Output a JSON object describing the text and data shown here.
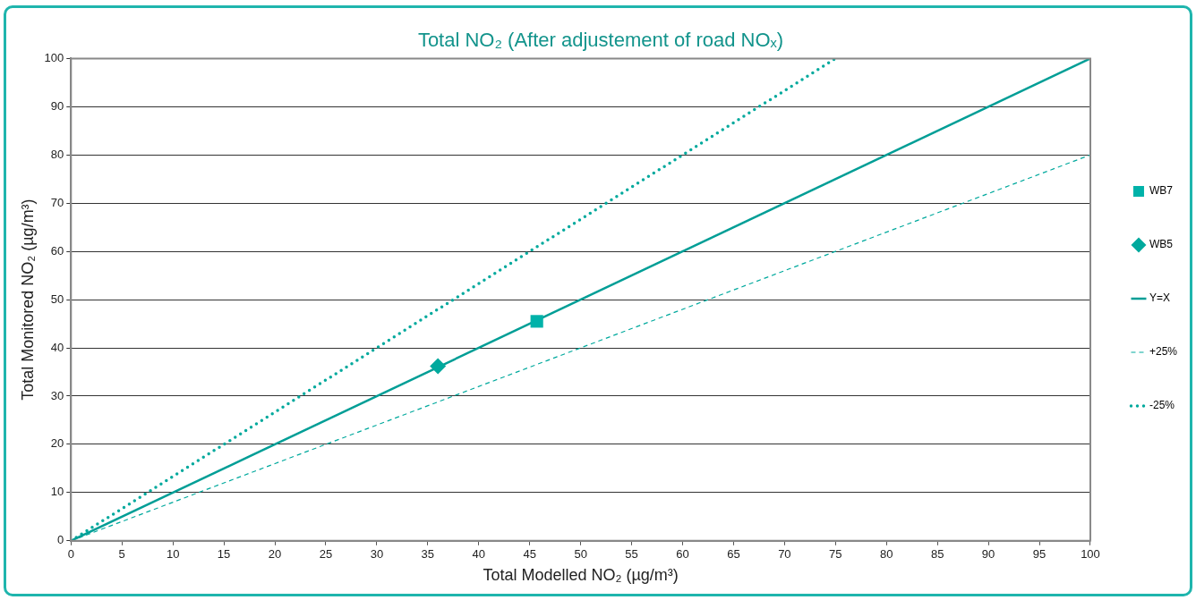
{
  "chart_data": {
    "type": "scatter",
    "title": "Total NO₂ (After adjustement of road NOₓ)",
    "xlabel": "Total Modelled NO₂ (µg/m³)",
    "ylabel": "Total Monitored NO₂ (µg/m³)",
    "xlim": [
      0,
      100
    ],
    "ylim": [
      0,
      100
    ],
    "xticks": [
      0,
      5,
      10,
      15,
      20,
      25,
      30,
      35,
      40,
      45,
      50,
      55,
      60,
      65,
      70,
      75,
      80,
      85,
      90,
      95,
      100
    ],
    "yticks": [
      0,
      10,
      20,
      30,
      40,
      50,
      60,
      70,
      80,
      90,
      100
    ],
    "grid": "y",
    "legend": "right",
    "series": [
      {
        "name": "WB7",
        "marker": "square",
        "color": "#00b2a9",
        "x": [
          45.7
        ],
        "values": [
          45.5
        ]
      },
      {
        "name": "WB5",
        "marker": "diamond",
        "color": "#00a99d",
        "x": [
          36.0
        ],
        "values": [
          36.2
        ]
      },
      {
        "name": "Y=X",
        "type": "line",
        "line_style": "solid",
        "color": "#009e96",
        "x": [
          0,
          100
        ],
        "values": [
          0,
          100
        ]
      },
      {
        "name": "+25%",
        "type": "line",
        "line_style": "dashed",
        "color": "#00a99d",
        "x": [
          0,
          100
        ],
        "values": [
          0,
          80
        ]
      },
      {
        "name": "-25%",
        "type": "line",
        "line_style": "dotted",
        "color": "#00a99d",
        "x": [
          0,
          75
        ],
        "values": [
          0,
          100
        ]
      }
    ]
  }
}
